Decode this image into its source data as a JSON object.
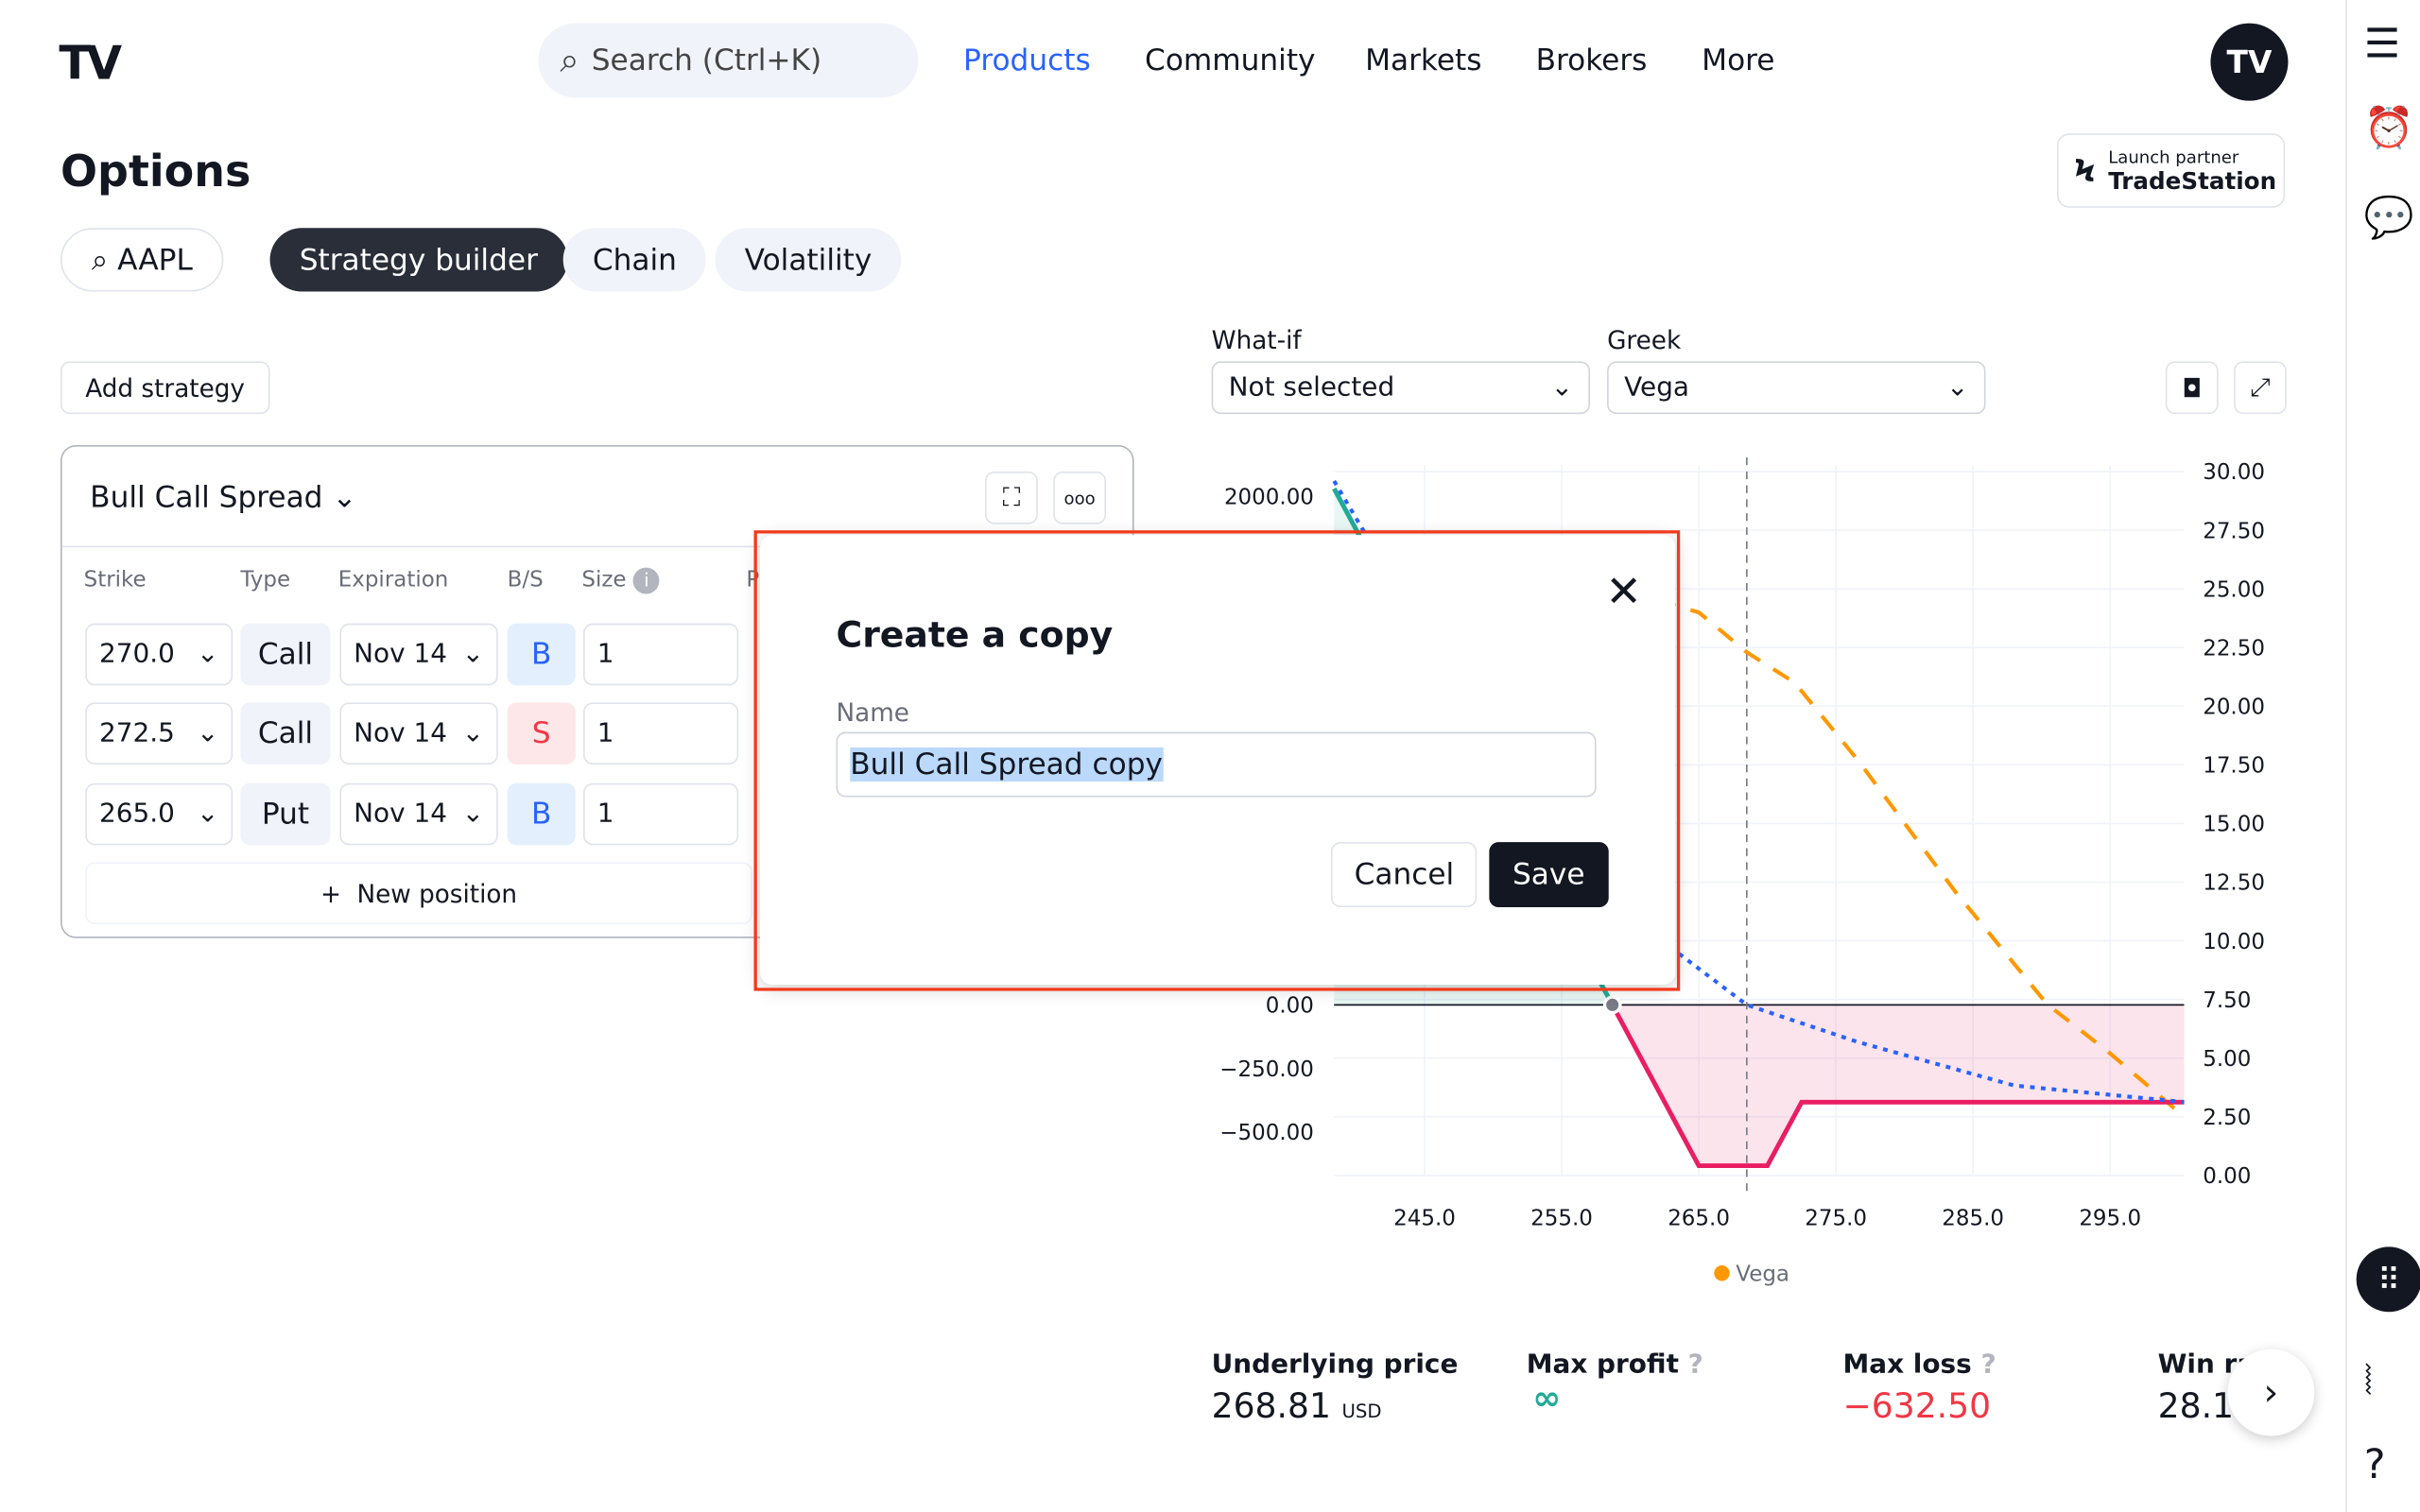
{
  "header": {
    "logo": "TV",
    "search_placeholder": "Search (Ctrl+K)",
    "nav": [
      "Products",
      "Community",
      "Markets",
      "Brokers",
      "More"
    ],
    "avatar": "TV",
    "partner": {
      "small": "Launch partner",
      "brand": "TradeStation"
    }
  },
  "page": {
    "title": "Options",
    "symbol": "AAPL",
    "tabs": [
      "Strategy builder",
      "Chain",
      "Volatility"
    ],
    "active_tab": "Strategy builder",
    "add_strategy": "Add strategy"
  },
  "controls": {
    "whatif_label": "What-if",
    "whatif_value": "Not selected",
    "greek_label": "Greek",
    "greek_value": "Vega"
  },
  "strategy": {
    "name": "Bull Call Spread",
    "columns": [
      "Strike",
      "Type",
      "Expiration",
      "B/S",
      "Size",
      "P"
    ],
    "rows": [
      {
        "strike": "270.0",
        "type": "Call",
        "expiration": "Nov 14",
        "side": "B",
        "size": "1"
      },
      {
        "strike": "272.5",
        "type": "Call",
        "expiration": "Nov 14",
        "side": "S",
        "size": "1"
      },
      {
        "strike": "265.0",
        "type": "Put",
        "expiration": "Nov 14",
        "side": "B",
        "size": "1"
      }
    ],
    "new_position": "New position"
  },
  "dialog": {
    "title": "Create a copy",
    "name_label": "Name",
    "name_value": "Bull Call Spread copy",
    "cancel": "Cancel",
    "save": "Save"
  },
  "stats": {
    "underlying_label": "Underlying price",
    "underlying_value": "268.81",
    "currency": "USD",
    "max_profit_label": "Max profit",
    "max_profit_value": "∞",
    "max_loss_label": "Max loss",
    "max_loss_value": "−632.50",
    "win_rate_label": "Win ra",
    "win_rate_value": "28.1"
  },
  "colors": {
    "accent": "#2962ff",
    "loss": "#f23645",
    "pnl_line": "#e91e63",
    "vega": "#ff9800",
    "theoretical": "#2962ff",
    "profit_line": "#22ab94"
  },
  "chart_data": {
    "type": "line",
    "x_ticks": [
      "245.0",
      "255.0",
      "265.0",
      "275.0",
      "285.0",
      "295.0"
    ],
    "left_ticks": [
      "2000.00",
      "0.00",
      "−250.00",
      "−500.00"
    ],
    "right_ticks": [
      "30.00",
      "27.50",
      "25.00",
      "22.50",
      "20.00",
      "17.50",
      "15.00",
      "12.50",
      "10.00",
      "7.50",
      "5.00",
      "2.50",
      "0.00"
    ],
    "xlim": [
      238.4,
      300.4
    ],
    "ylim_left": [
      -700,
      2000
    ],
    "ylim_right": [
      0,
      30
    ],
    "underlying": 268.5,
    "legend": [
      "Vega"
    ],
    "legend_position": "bottom",
    "series": [
      {
        "name": "Vega",
        "axis": "right",
        "style": "dashed",
        "points": [
          [
            262,
            24.5
          ],
          [
            265,
            24
          ],
          [
            268.5,
            22.3
          ],
          [
            272,
            21
          ],
          [
            276.6,
            17.7
          ],
          [
            283.7,
            12.1
          ],
          [
            290.4,
            7.3
          ],
          [
            295,
            5.2
          ],
          [
            300.4,
            2.5
          ]
        ]
      },
      {
        "axis": "left",
        "style": "solid",
        "points": [
          [
            238.4,
            2030
          ],
          [
            258.7,
            0
          ],
          [
            265,
            -632.5
          ],
          [
            270,
            -632.5
          ],
          [
            272.5,
            -382.5
          ],
          [
            300.4,
            -382.5
          ]
        ]
      },
      {
        "axis": "left",
        "style": "dotted",
        "points": [
          [
            238.4,
            2060
          ],
          [
            240.7,
            1850
          ],
          [
            262.8,
            232
          ],
          [
            268.5,
            0
          ],
          [
            276.6,
            -146
          ],
          [
            288,
            -317
          ],
          [
            300.4,
            -382
          ]
        ]
      }
    ]
  }
}
